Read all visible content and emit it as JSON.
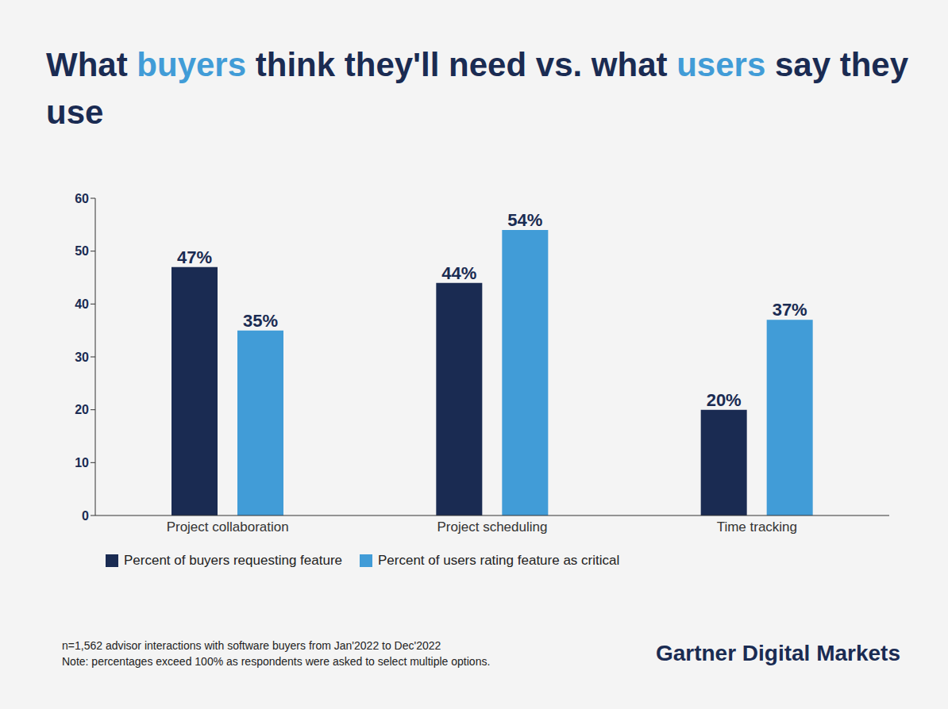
{
  "chart_data": {
    "type": "bar",
    "title": "What buyers think they'll need vs. what users say they use",
    "categories": [
      "Project collaboration",
      "Project scheduling",
      "Time tracking"
    ],
    "series": [
      {
        "name": "Percent of buyers requesting feature",
        "color": "#1a2b52",
        "values": [
          47,
          44,
          20
        ],
        "value_labels": [
          "47%",
          "44%",
          "20%"
        ]
      },
      {
        "name": "Percent of users rating feature as critical",
        "color": "#419cd7",
        "values": [
          35,
          54,
          37
        ],
        "value_labels": [
          "35%",
          "54%",
          "37%"
        ]
      }
    ],
    "ylim": [
      0,
      60
    ],
    "yticks": [
      0,
      10,
      20,
      30,
      40,
      50,
      60
    ],
    "grid": false,
    "legend": "bottom left",
    "data_labels": true,
    "notes": [
      "n=1,562 advisor interactions with software buyers from Jan'2022 to Dec'2022",
      "Note: percentages exceed 100% as respondents were asked to select multiple options."
    ],
    "source": "Gartner Digital Markets"
  }
}
